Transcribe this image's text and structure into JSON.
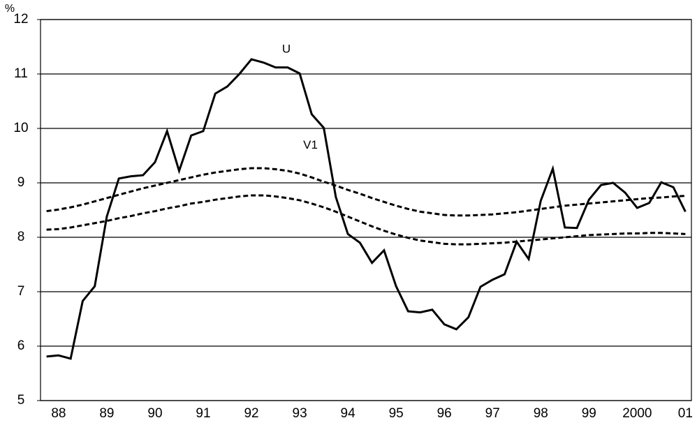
{
  "chart_data": {
    "type": "line",
    "y_unit": "%",
    "categories": [
      null,
      "88",
      null,
      null,
      null,
      "89",
      null,
      null,
      null,
      "90",
      null,
      null,
      null,
      "91",
      null,
      null,
      null,
      "92",
      null,
      null,
      null,
      "93",
      null,
      null,
      null,
      "94",
      null,
      null,
      null,
      "95",
      null,
      null,
      null,
      "96",
      null,
      null,
      null,
      "97",
      null,
      null,
      null,
      "98",
      null,
      null,
      null,
      "99",
      null,
      null,
      null,
      "2000",
      null,
      null,
      null,
      "01"
    ],
    "series": [
      {
        "name": "U",
        "color": "#000000",
        "dash": false,
        "values": [
          5.81,
          5.83,
          5.77,
          6.83,
          7.1,
          8.38,
          9.08,
          9.12,
          9.14,
          9.38,
          9.95,
          9.22,
          9.87,
          9.95,
          10.64,
          10.77,
          11.0,
          11.27,
          11.21,
          11.12,
          11.12,
          11.01,
          10.26,
          10.01,
          8.74,
          8.06,
          7.9,
          7.53,
          7.76,
          7.1,
          6.64,
          6.62,
          6.67,
          6.4,
          6.31,
          6.53,
          7.09,
          7.22,
          7.32,
          7.92,
          7.6,
          8.67,
          9.26,
          8.18,
          8.17,
          8.69,
          8.96,
          9.0,
          8.82,
          8.54,
          8.63,
          9.01,
          8.92,
          8.47
        ]
      },
      {
        "name": "V1",
        "color": "#000000",
        "dash": true,
        "values": [
          8.48,
          8.51,
          8.55,
          8.6,
          8.66,
          8.72,
          8.78,
          8.84,
          8.9,
          8.95,
          9.0,
          9.05,
          9.1,
          9.15,
          9.19,
          9.22,
          9.25,
          9.27,
          9.27,
          9.25,
          9.22,
          9.17,
          9.1,
          9.02,
          8.95,
          8.87,
          8.8,
          8.72,
          8.65,
          8.58,
          8.52,
          8.47,
          8.44,
          8.41,
          8.4,
          8.4,
          8.41,
          8.42,
          8.44,
          8.46,
          8.49,
          8.52,
          8.55,
          8.58,
          8.6,
          8.62,
          8.64,
          8.66,
          8.68,
          8.7,
          8.72,
          8.73,
          8.75,
          8.76
        ]
      },
      {
        "color": "#000000",
        "dash": true,
        "values": [
          8.14,
          8.15,
          8.18,
          8.22,
          8.26,
          8.3,
          8.35,
          8.39,
          8.44,
          8.48,
          8.53,
          8.57,
          8.62,
          8.65,
          8.69,
          8.72,
          8.75,
          8.77,
          8.77,
          8.75,
          8.72,
          8.68,
          8.62,
          8.55,
          8.47,
          8.38,
          8.29,
          8.2,
          8.12,
          8.05,
          7.99,
          7.94,
          7.91,
          7.88,
          7.87,
          7.87,
          7.88,
          7.89,
          7.9,
          7.92,
          7.94,
          7.96,
          7.98,
          8.0,
          8.02,
          8.04,
          8.05,
          8.06,
          8.07,
          8.07,
          8.08,
          8.08,
          8.07,
          8.06
        ]
      }
    ],
    "ylim": [
      5,
      12
    ],
    "yticks": [
      5,
      6,
      7,
      8,
      9,
      10,
      11,
      12
    ],
    "grid": true
  }
}
